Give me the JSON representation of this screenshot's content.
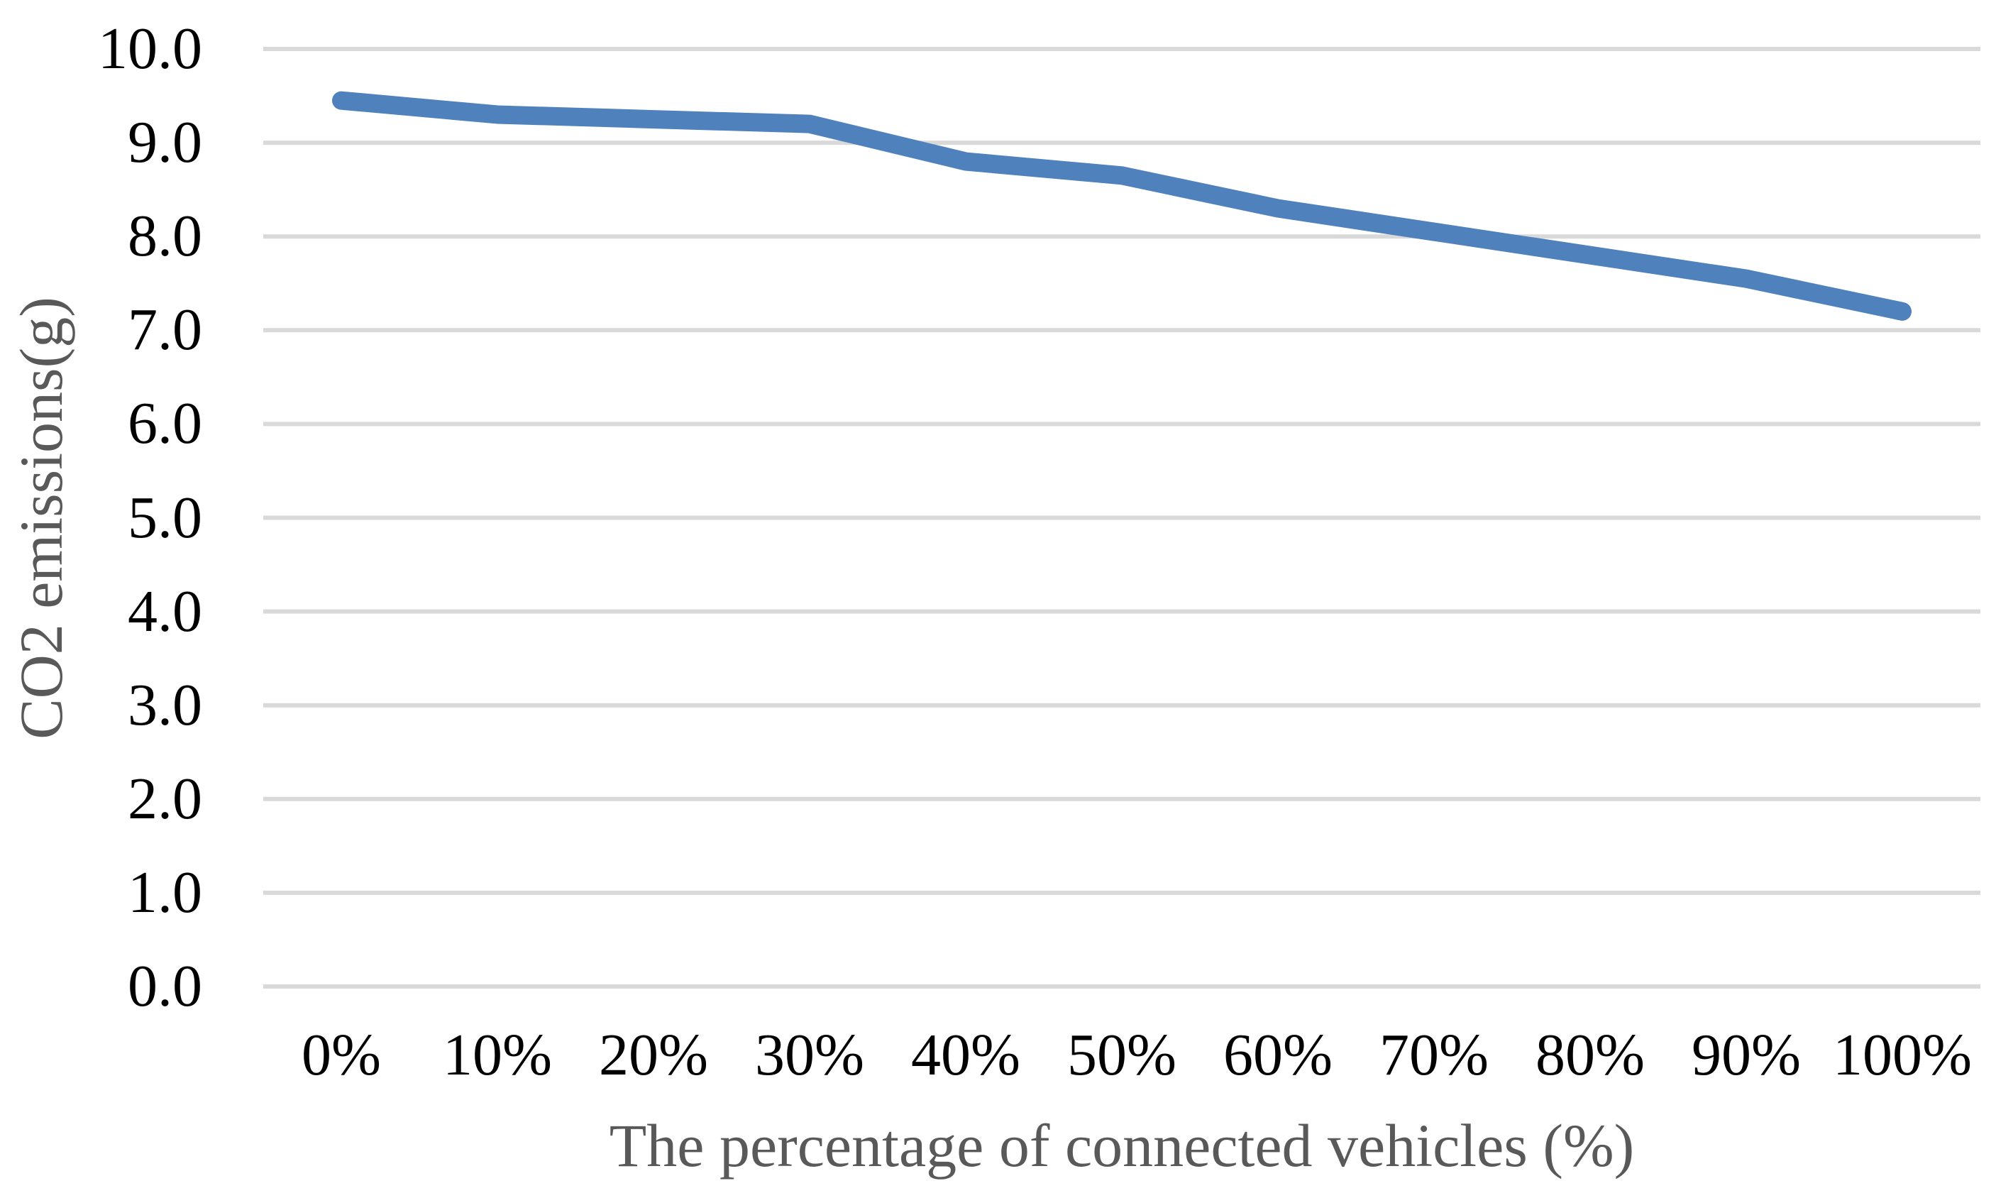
{
  "figure": {
    "background_color": "#FFFFFF"
  },
  "chart_data": {
    "type": "line",
    "title": "",
    "xlabel": "The percentage of connected vehicles (%)",
    "ylabel": "CO2 emissions(g)",
    "categories": [
      "0%",
      "10%",
      "20%",
      "30%",
      "40%",
      "50%",
      "60%",
      "70%",
      "80%",
      "90%",
      "100%"
    ],
    "series": [
      {
        "name": "CO2 emissions",
        "values": [
          9.45,
          9.3,
          9.25,
          9.2,
          8.8,
          8.65,
          8.3,
          8.05,
          7.8,
          7.55,
          7.2
        ],
        "color": "#4F81BD"
      }
    ],
    "ylim": [
      0,
      10
    ],
    "ytick_step": 1,
    "ytick_labels": [
      "10.0",
      "9.0",
      "8.0",
      "7.0",
      "6.0",
      "5.0",
      "4.0",
      "3.0",
      "2.0",
      "1.0",
      "0.0"
    ],
    "grid": "horizontal-only",
    "gridline_color": "#D9D9D9",
    "tick_label_color": "#000000",
    "axis_title_color": "#595959",
    "legend_position": "none"
  }
}
